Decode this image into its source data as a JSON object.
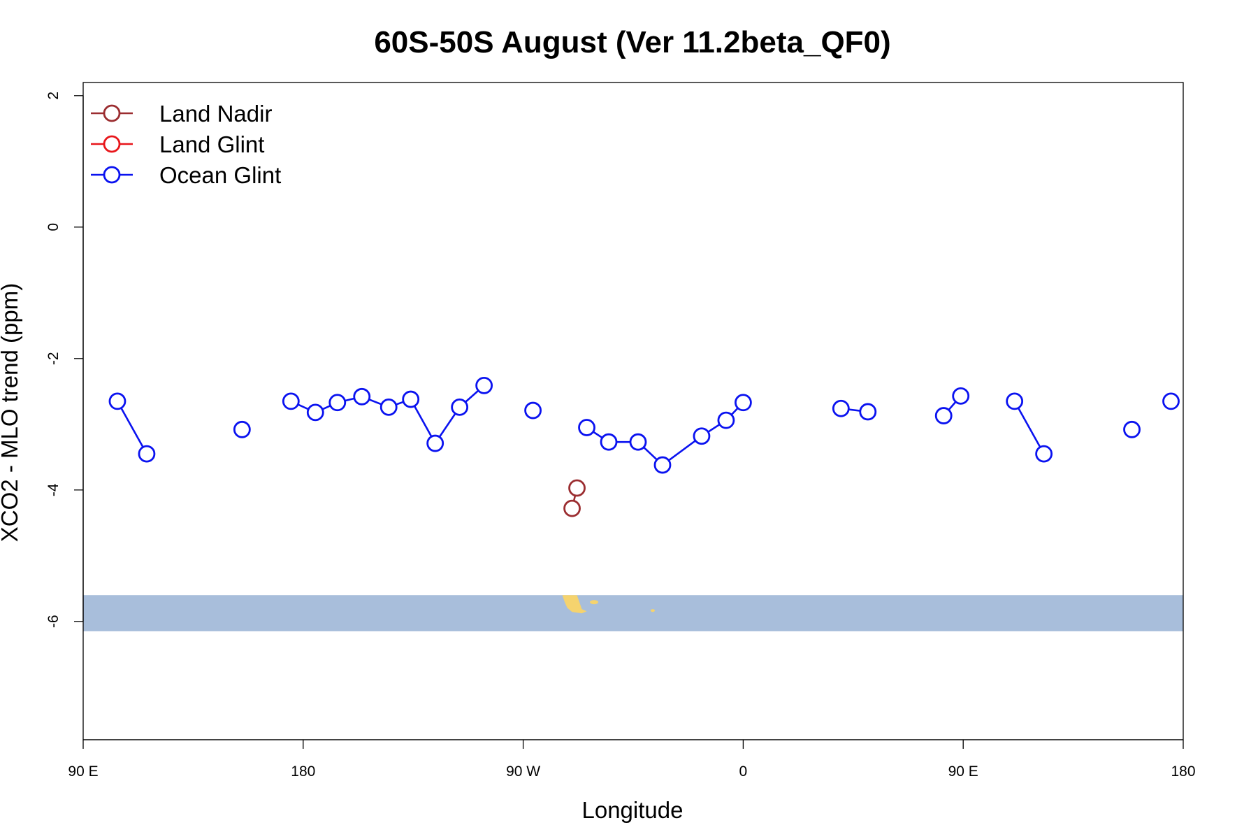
{
  "chart_data": {
    "type": "line",
    "title": "60S-50S August (Ver 11.2beta_QF0)",
    "xlabel": "Longitude",
    "ylabel": "XCO2 - MLO trend (ppm)",
    "xlim": [
      90,
      540
    ],
    "ylim": [
      -7.8,
      2.2
    ],
    "x_ticks": [
      {
        "value": 90,
        "label": "90 E"
      },
      {
        "value": 180,
        "label": "180"
      },
      {
        "value": 270,
        "label": "90 W"
      },
      {
        "value": 360,
        "label": "0"
      },
      {
        "value": 450,
        "label": "90 E"
      },
      {
        "value": 540,
        "label": "180"
      }
    ],
    "y_ticks": [
      {
        "value": 2,
        "label": "2"
      },
      {
        "value": 0,
        "label": "0"
      },
      {
        "value": -2,
        "label": "-2"
      },
      {
        "value": -4,
        "label": "-4"
      },
      {
        "value": -6,
        "label": "-6"
      }
    ],
    "legend_position": "top-left",
    "series": [
      {
        "name": "Land Nadir",
        "color": "#9b2d30",
        "segments": [
          [
            [
              290,
              -4.28
            ],
            [
              292,
              -3.97
            ]
          ]
        ]
      },
      {
        "name": "Land Glint",
        "color": "#e8161b",
        "segments": []
      },
      {
        "name": "Ocean Glint",
        "color": "#0a12f0",
        "segments": [
          [
            [
              104,
              -2.65
            ],
            [
              116,
              -3.45
            ]
          ],
          [
            [
              155,
              -3.08
            ]
          ],
          [
            [
              175,
              -2.65
            ],
            [
              185,
              -2.82
            ],
            [
              194,
              -2.67
            ],
            [
              204,
              -2.58
            ],
            [
              215,
              -2.74
            ],
            [
              224,
              -2.62
            ],
            [
              234,
              -3.29
            ],
            [
              244,
              -2.74
            ],
            [
              254,
              -2.41
            ]
          ],
          [
            [
              274,
              -2.79
            ]
          ],
          [
            [
              296,
              -3.05
            ],
            [
              305,
              -3.27
            ],
            [
              317,
              -3.27
            ],
            [
              327,
              -3.62
            ],
            [
              343,
              -3.18
            ],
            [
              353,
              -2.94
            ],
            [
              360,
              -2.67
            ]
          ],
          [
            [
              400,
              -2.76
            ],
            [
              411,
              -2.81
            ]
          ],
          [
            [
              442,
              -2.87
            ],
            [
              449,
              -2.57
            ]
          ],
          [
            [
              471,
              -2.65
            ],
            [
              483,
              -3.45
            ]
          ],
          [
            [
              519,
              -3.08
            ]
          ],
          [
            [
              535,
              -2.65
            ]
          ]
        ]
      }
    ],
    "inset_map": {
      "ocean_color": "#a8bedb",
      "land_color": "#f5d36e",
      "y_top": -5.6,
      "y_bottom": -6.15
    }
  }
}
